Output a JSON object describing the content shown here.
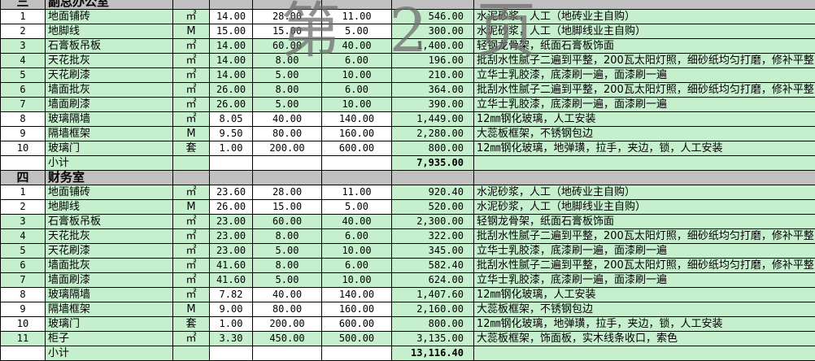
{
  "watermark": "第 2 页",
  "colors": {
    "cell_green": "#c6efce",
    "section_gray": "#c0c0c0",
    "watermark_gray": "#6e6e6e"
  },
  "sections": [
    {
      "number": "三",
      "title": "副总办公室",
      "items": [
        {
          "no": "1",
          "name": "地面铺砖",
          "unit": "㎡",
          "qty": "14.00",
          "price1": "28.00",
          "price2": "11.00",
          "total": "546.00",
          "note": "水泥砂浆，人工（地砖业主自购）"
        },
        {
          "no": "2",
          "name": "地脚线",
          "unit": "M",
          "qty": "15.00",
          "price1": "15.00",
          "price2": "5.00",
          "total": "300.00",
          "note": "水泥砂浆，人工（地脚线业主自购）"
        },
        {
          "no": "3",
          "name": "石膏板吊板",
          "unit": "㎡",
          "qty": "14.00",
          "price1": "60.00",
          "price2": "40.00",
          "total": "1,400.00",
          "note": "轻钢龙骨架，纸面石膏板饰面"
        },
        {
          "no": "4",
          "name": "天花批灰",
          "unit": "㎡",
          "qty": "14.00",
          "price1": "8.00",
          "price2": "6.00",
          "total": "196.00",
          "note": "批刮水性腻子二遍到平整，200瓦太阳灯照，细砂纸均匀打磨，修补平整"
        },
        {
          "no": "5",
          "name": "天花刷漆",
          "unit": "㎡",
          "qty": "14.00",
          "price1": "5.00",
          "price2": "10.00",
          "total": "210.00",
          "note": "立华士乳胶漆，底漆刷一遍，面漆刷一遍"
        },
        {
          "no": "6",
          "name": "墙面批灰",
          "unit": "㎡",
          "qty": "26.00",
          "price1": "8.00",
          "price2": "6.00",
          "total": "364.00",
          "note": "批刮水性腻子二遍到平整，200瓦太阳灯照，细砂纸均匀打磨，修补平整"
        },
        {
          "no": "7",
          "name": "墙面刷漆",
          "unit": "㎡",
          "qty": "26.00",
          "price1": "5.00",
          "price2": "10.00",
          "total": "390.00",
          "note": "立华士乳胶漆，底漆刷一遍，面漆刷一遍"
        },
        {
          "no": "8",
          "name": "玻璃隔墙",
          "unit": "㎡",
          "qty": "8.05",
          "price1": "40.00",
          "price2": "140.00",
          "total": "1,449.00",
          "note": "12㎜钢化玻璃，人工安装"
        },
        {
          "no": "9",
          "name": "隔墙框架",
          "unit": "M",
          "qty": "9.50",
          "price1": "80.00",
          "price2": "160.00",
          "total": "2,280.00",
          "note": "大蕊板框架，不锈钢包边"
        },
        {
          "no": "10",
          "name": "玻璃门",
          "unit": "套",
          "qty": "1.00",
          "price1": "200.00",
          "price2": "600.00",
          "total": "800.00",
          "note": "12㎜钢化玻璃，地弹璜，拉手，夹边，锁，人工安装"
        }
      ],
      "subtotal_label": "小计",
      "subtotal": "7,935.00"
    },
    {
      "number": "四",
      "title": "财务室",
      "items": [
        {
          "no": "1",
          "name": "地面铺砖",
          "unit": "㎡",
          "qty": "23.60",
          "price1": "28.00",
          "price2": "11.00",
          "total": "920.40",
          "note": "水泥砂浆，人工（地砖业主自购）"
        },
        {
          "no": "2",
          "name": "地脚线",
          "unit": "M",
          "qty": "26.00",
          "price1": "15.00",
          "price2": "5.00",
          "total": "520.00",
          "note": "水泥砂浆，人工（地脚线业主自购）"
        },
        {
          "no": "3",
          "name": "石膏板吊板",
          "unit": "㎡",
          "qty": "23.00",
          "price1": "60.00",
          "price2": "40.00",
          "total": "2,300.00",
          "note": "轻钢龙骨架，纸面石膏板饰面"
        },
        {
          "no": "4",
          "name": "天花批灰",
          "unit": "㎡",
          "qty": "23.00",
          "price1": "8.00",
          "price2": "6.00",
          "total": "322.00",
          "note": "批刮水性腻子二遍到平整，200瓦太阳灯照，细砂纸均匀打磨，修补平整"
        },
        {
          "no": "5",
          "name": "天花刷漆",
          "unit": "㎡",
          "qty": "23.00",
          "price1": "5.00",
          "price2": "10.00",
          "total": "345.00",
          "note": "立华士乳胶漆，底漆刷一遍，面漆刷一遍"
        },
        {
          "no": "6",
          "name": "墙面批灰",
          "unit": "㎡",
          "qty": "41.60",
          "price1": "8.00",
          "price2": "6.00",
          "total": "582.40",
          "note": "批刮水性腻子二遍到平整，200瓦太阳灯照，细砂纸均匀打磨，修补平整"
        },
        {
          "no": "7",
          "name": "墙面刷漆",
          "unit": "㎡",
          "qty": "41.60",
          "price1": "5.00",
          "price2": "10.00",
          "total": "624.00",
          "note": "立华士乳胶漆，底漆刷一遍，面漆刷一遍"
        },
        {
          "no": "8",
          "name": "玻璃隔墙",
          "unit": "㎡",
          "qty": "7.82",
          "price1": "40.00",
          "price2": "140.00",
          "total": "1,407.60",
          "note": "12㎜钢化玻璃，人工安装"
        },
        {
          "no": "9",
          "name": "隔墙框架",
          "unit": "M",
          "qty": "9.00",
          "price1": "80.00",
          "price2": "160.00",
          "total": "2,160.00",
          "note": "大蕊板框架，不锈钢包边"
        },
        {
          "no": "10",
          "name": "玻璃门",
          "unit": "套",
          "qty": "1.00",
          "price1": "200.00",
          "price2": "600.00",
          "total": "800.00",
          "note": "12㎜钢化玻璃，地弹璜，拉手，夹边，锁，人工安装"
        },
        {
          "no": "11",
          "name": "柜子",
          "unit": "㎡",
          "qty": "3.30",
          "price1": "450.00",
          "price2": "500.00",
          "total": "3,135.00",
          "note": "大蕊板框架，饰面板，实木线条收口，索色"
        }
      ],
      "subtotal_label": "小计",
      "subtotal": "13,116.40"
    }
  ]
}
